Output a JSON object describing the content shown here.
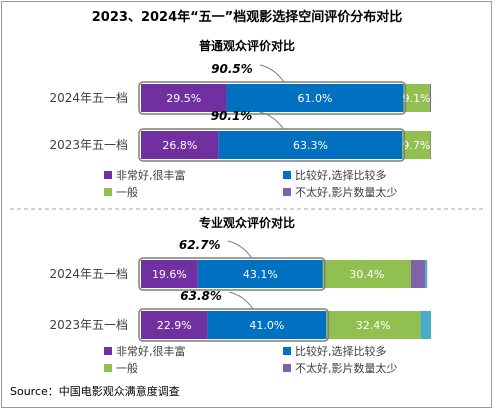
{
  "title": "2023、2024年“五一”档观影选择空间评价分布对比",
  "source": "Source：中国电影观众满意度调查",
  "palette": {
    "very_good": "#7030a0",
    "good": "#0070c0",
    "average": "#92c050",
    "not_good": "#7f62a8",
    "extra": "#4bacc6",
    "highlight_border": "#7f7f7f",
    "divider": "#a6a6a6"
  },
  "chart_data": [
    {
      "type": "bar",
      "orientation": "horizontal",
      "stacked": true,
      "title": "普通观众评价对比",
      "categories": [
        "2024年五一档",
        "2023年五一档"
      ],
      "series": [
        {
          "name": "非常好,很丰富",
          "values": [
            29.5,
            26.8
          ],
          "labels": [
            "29.5%",
            "26.8%"
          ],
          "color": "#7030a0"
        },
        {
          "name": "比较好,选择比较多",
          "values": [
            61.0,
            63.3
          ],
          "labels": [
            "61.0%",
            "63.3%"
          ],
          "color": "#0070c0"
        },
        {
          "name": "一般",
          "values": [
            9.1,
            9.7
          ],
          "labels": [
            "9.1%",
            "9.7%"
          ],
          "color": "#92c050"
        },
        {
          "name": "不太好,影片数量太少",
          "values": [
            0.4,
            0.2
          ],
          "labels": [
            "",
            ""
          ],
          "color": "#7f62a8"
        }
      ],
      "highlight_totals": [
        "90.5%",
        "90.1%"
      ],
      "xlim": [
        0,
        100
      ],
      "legend_position": "bottom",
      "legend": [
        "非常好,很丰富",
        "比较好,选择比较多",
        "一般",
        "不太好,影片数量太少"
      ]
    },
    {
      "type": "bar",
      "orientation": "horizontal",
      "stacked": true,
      "title": "专业观众评价对比",
      "categories": [
        "2024年五一档",
        "2023年五一档"
      ],
      "series": [
        {
          "name": "非常好,很丰富",
          "values": [
            19.6,
            22.9
          ],
          "labels": [
            "19.6%",
            "22.9%"
          ],
          "color": "#7030a0"
        },
        {
          "name": "比较好,选择比较多",
          "values": [
            43.1,
            41.0
          ],
          "labels": [
            "43.1%",
            "41.0%"
          ],
          "color": "#0070c0"
        },
        {
          "name": "一般",
          "values": [
            30.4,
            32.4
          ],
          "labels": [
            "30.4%",
            "32.4%"
          ],
          "color": "#92c050"
        },
        {
          "name": "不太好,影片数量太少",
          "values": [
            4.9,
            0.0
          ],
          "labels": [
            "",
            ""
          ],
          "color": "#7f62a8"
        },
        {
          "name": "",
          "values": [
            0.7,
            3.7
          ],
          "labels": [
            "",
            ""
          ],
          "color": "#4bacc6"
        }
      ],
      "highlight_totals": [
        "62.7%",
        "63.8%"
      ],
      "xlim": [
        0,
        100
      ],
      "legend_position": "bottom",
      "legend": [
        "非常好,很丰富",
        "比较好,选择比较多",
        "一般",
        "不太好,影片数量太少"
      ]
    }
  ]
}
